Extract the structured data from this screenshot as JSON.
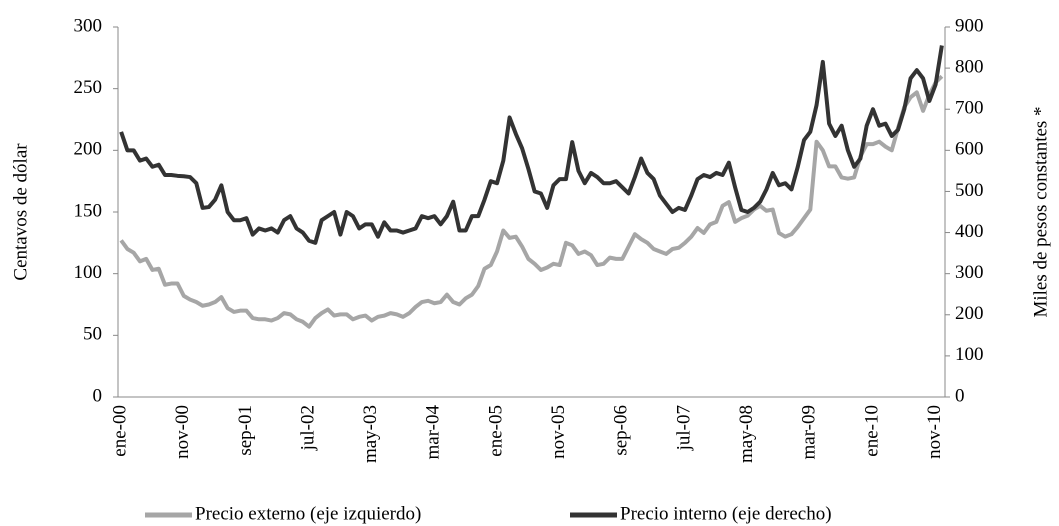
{
  "chart_data": {
    "type": "line",
    "ylabel": "Centavos de dólar",
    "y2label": "Miles de pesos constantes *",
    "categories": [
      "ene-00",
      null,
      null,
      null,
      null,
      null,
      null,
      null,
      null,
      null,
      "nov-00",
      null,
      null,
      null,
      null,
      null,
      null,
      null,
      null,
      null,
      "sep-01",
      null,
      null,
      null,
      null,
      null,
      null,
      null,
      null,
      null,
      "jul-02",
      null,
      null,
      null,
      null,
      null,
      null,
      null,
      null,
      null,
      "may-03",
      null,
      null,
      null,
      null,
      null,
      null,
      null,
      null,
      null,
      "mar-04",
      null,
      null,
      null,
      null,
      null,
      null,
      null,
      null,
      null,
      "ene-05",
      null,
      null,
      null,
      null,
      null,
      null,
      null,
      null,
      null,
      "nov-05",
      null,
      null,
      null,
      null,
      null,
      null,
      null,
      null,
      null,
      "sep-06",
      null,
      null,
      null,
      null,
      null,
      null,
      null,
      null,
      null,
      "jul-07",
      null,
      null,
      null,
      null,
      null,
      null,
      null,
      null,
      null,
      "may-08",
      null,
      null,
      null,
      null,
      null,
      null,
      null,
      null,
      null,
      "mar-09",
      null,
      null,
      null,
      null,
      null,
      null,
      null,
      null,
      null,
      "ene-10",
      null,
      null,
      null,
      null,
      null,
      null,
      null,
      null,
      null,
      "nov-10",
      null
    ],
    "series": [
      {
        "name": "Precio externo (eje izquierdo)",
        "color": "#a6a6a6",
        "values": [
          127,
          120,
          117,
          110,
          112,
          103,
          104,
          91,
          92,
          92,
          82,
          79,
          77,
          74,
          75,
          77,
          81,
          72,
          69,
          70,
          70,
          64,
          63,
          63,
          62,
          64,
          68,
          67,
          63,
          61,
          57,
          64,
          68,
          71,
          66,
          67,
          67,
          63,
          65,
          66,
          62,
          65,
          66,
          68,
          67,
          65,
          68,
          73,
          77,
          78,
          76,
          77,
          83,
          77,
          75,
          80,
          83,
          90,
          104,
          107,
          118,
          135,
          129,
          130,
          122,
          112,
          108,
          103,
          105,
          108,
          107,
          125,
          123,
          116,
          118,
          115,
          107,
          108,
          113,
          112,
          112,
          122,
          132,
          128,
          125,
          120,
          118,
          116,
          120,
          121,
          125,
          130,
          137,
          133,
          140,
          142,
          155,
          158,
          142,
          145,
          147,
          152,
          155,
          151,
          152,
          133,
          130,
          132,
          138,
          145,
          152,
          207,
          200,
          187,
          187,
          178,
          177,
          178,
          195,
          205,
          205,
          207,
          203,
          200,
          218,
          235,
          243,
          247,
          232,
          245,
          255,
          260
        ]
      },
      {
        "name": "Precio interno (eje derecho)",
        "color": "#333333",
        "axis": "y2",
        "values": [
          645,
          600,
          600,
          575,
          580,
          560,
          565,
          540,
          540,
          538,
          537,
          535,
          520,
          460,
          462,
          480,
          515,
          450,
          430,
          430,
          435,
          395,
          410,
          405,
          410,
          400,
          430,
          440,
          410,
          400,
          380,
          375,
          430,
          440,
          450,
          395,
          450,
          440,
          410,
          420,
          420,
          390,
          425,
          405,
          405,
          400,
          405,
          410,
          440,
          435,
          440,
          420,
          440,
          475,
          405,
          405,
          440,
          440,
          480,
          525,
          520,
          575,
          680,
          640,
          605,
          555,
          500,
          495,
          460,
          515,
          530,
          530,
          620,
          550,
          520,
          545,
          535,
          520,
          520,
          525,
          510,
          495,
          535,
          580,
          545,
          530,
          490,
          470,
          450,
          460,
          455,
          490,
          530,
          540,
          535,
          545,
          540,
          570,
          510,
          455,
          450,
          460,
          475,
          505,
          545,
          515,
          520,
          505,
          560,
          625,
          645,
          710,
          815,
          665,
          635,
          660,
          600,
          560,
          580,
          660,
          700,
          660,
          665,
          635,
          650,
          700,
          775,
          795,
          775,
          720,
          760,
          855
        ]
      }
    ],
    "ylim": [
      0,
      300
    ],
    "yticks": [
      0,
      50,
      100,
      150,
      200,
      250,
      300
    ],
    "y2lim": [
      0,
      900
    ],
    "y2ticks": [
      0,
      100,
      200,
      300,
      400,
      500,
      600,
      700,
      800,
      900
    ],
    "grid": false,
    "legend": "bottom"
  }
}
